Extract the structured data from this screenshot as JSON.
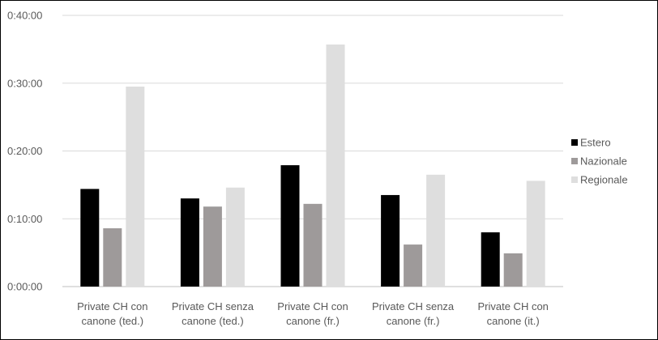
{
  "chart_data": {
    "type": "bar",
    "title": "",
    "xlabel": "",
    "ylabel": "",
    "categories": [
      [
        "Private CH con",
        "canone (ted.)"
      ],
      [
        "Private CH senza",
        "canone (ted.)"
      ],
      [
        "Private CH con",
        "canone (fr.)"
      ],
      [
        "Private CH senza",
        "canone (fr.)"
      ],
      [
        "Private CH con",
        "canone (it.)"
      ]
    ],
    "y_unit": "minutes",
    "ylim": [
      0,
      40
    ],
    "y_ticks": [
      {
        "value": 0,
        "label": "0:00:00"
      },
      {
        "value": 10,
        "label": "0:10:00"
      },
      {
        "value": 20,
        "label": "0:20:00"
      },
      {
        "value": 30,
        "label": "0:30:00"
      },
      {
        "value": 40,
        "label": "0:40:00"
      }
    ],
    "series": [
      {
        "name": "Estero",
        "color": "#000000",
        "values": [
          14.4,
          13.0,
          17.9,
          13.5,
          8.0
        ]
      },
      {
        "name": "Nazionale",
        "color": "#9e9a9a",
        "values": [
          8.6,
          11.8,
          12.2,
          6.2,
          4.9
        ]
      },
      {
        "name": "Regionale",
        "color": "#dedede",
        "values": [
          29.5,
          14.6,
          35.7,
          16.5,
          15.6
        ]
      }
    ],
    "grid": true,
    "legend_position": "right"
  }
}
